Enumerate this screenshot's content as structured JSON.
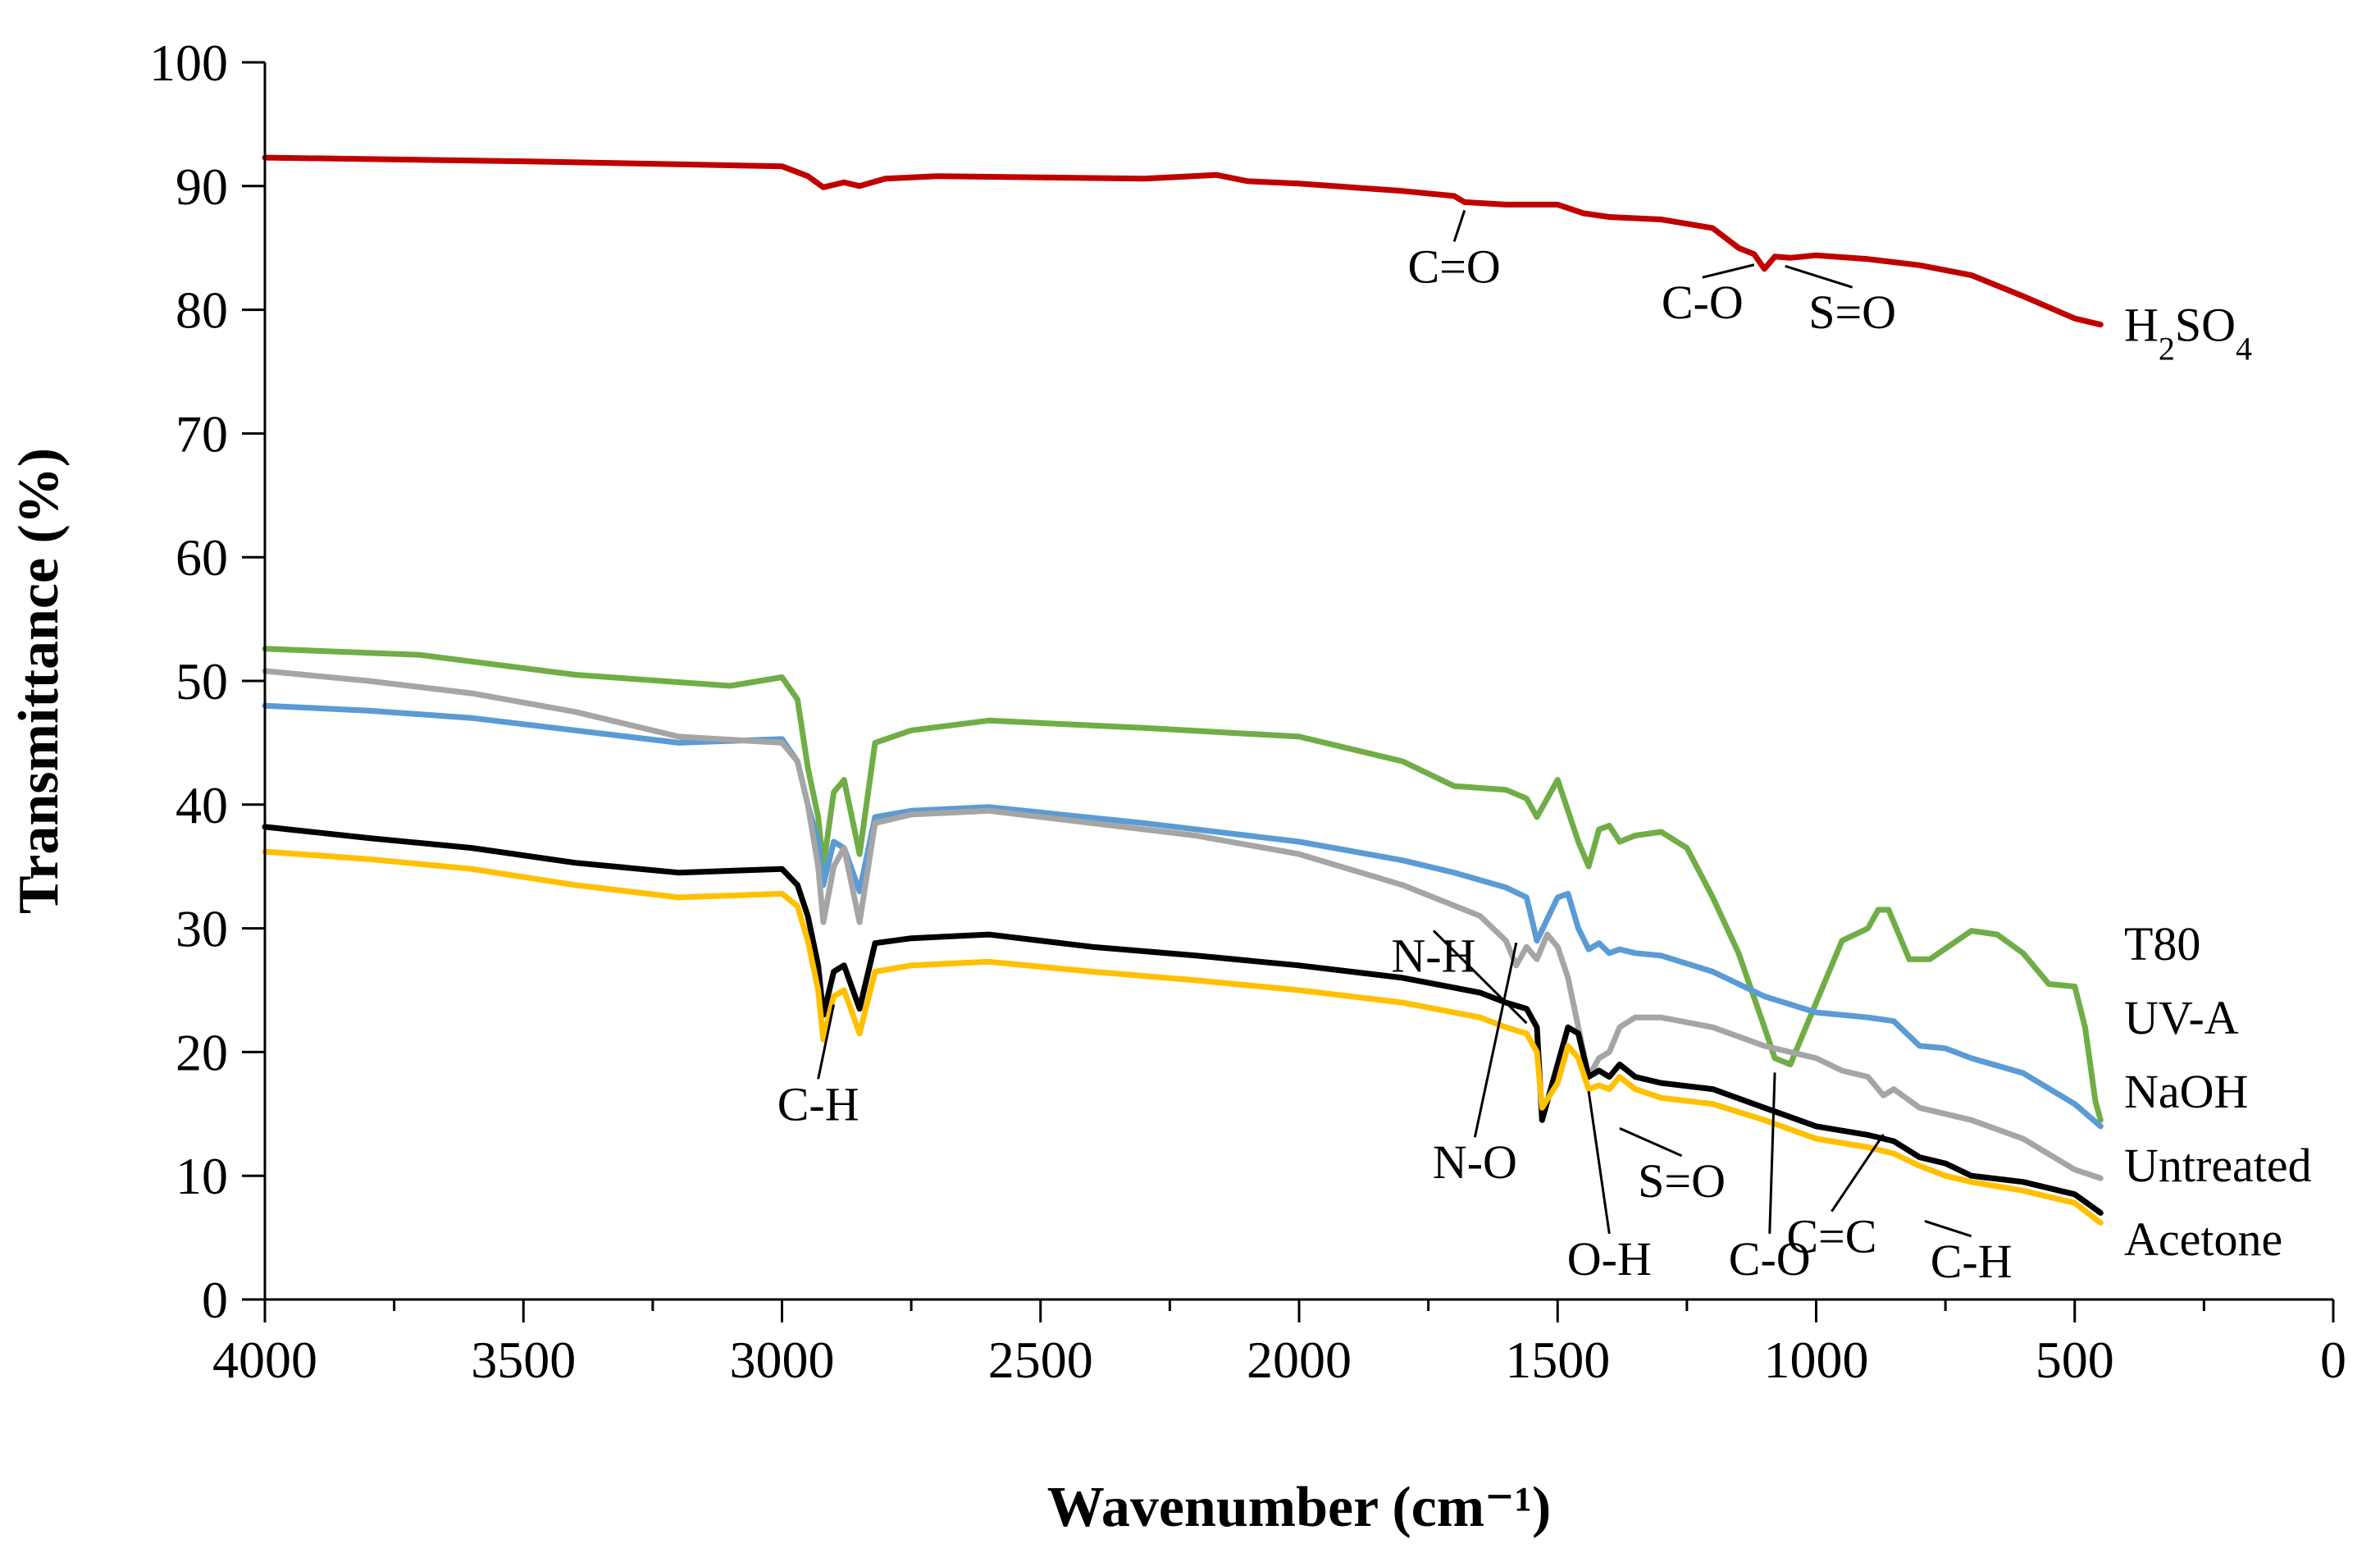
{
  "chart_data": {
    "type": "line",
    "title": "",
    "xlabel": "Wavenumber (cm⁻¹)",
    "ylabel": "Transmittance (%)",
    "xlim": [
      4000,
      0
    ],
    "ylim": [
      0,
      100
    ],
    "xticks": [
      4000,
      3500,
      3000,
      2500,
      2000,
      1500,
      1000,
      500,
      0
    ],
    "yticks": [
      0,
      10,
      20,
      30,
      40,
      50,
      60,
      70,
      80,
      90,
      100
    ],
    "grid": false,
    "legend_position": "right, beside line ends",
    "series": [
      {
        "name": "H2SO4",
        "label_main": "H",
        "label_sub1": "2",
        "label_mid": "SO",
        "label_sub2": "4",
        "color": "#C00000",
        "x": [
          4000,
          3500,
          3000,
          2950,
          2920,
          2880,
          2850,
          2800,
          2700,
          2500,
          2300,
          2160,
          2100,
          2000,
          1900,
          1800,
          1700,
          1680,
          1600,
          1500,
          1450,
          1400,
          1300,
          1200,
          1150,
          1120,
          1100,
          1080,
          1050,
          1000,
          900,
          800,
          700,
          600,
          500,
          450
        ],
        "y": [
          92.3,
          92.0,
          91.6,
          90.8,
          89.9,
          90.3,
          90.0,
          90.6,
          90.8,
          90.7,
          90.6,
          90.9,
          90.4,
          90.2,
          89.9,
          89.6,
          89.2,
          88.7,
          88.5,
          88.5,
          87.8,
          87.5,
          87.3,
          86.6,
          85.0,
          84.5,
          83.3,
          84.3,
          84.2,
          84.4,
          84.1,
          83.6,
          82.8,
          81.1,
          79.3,
          78.8
        ]
      },
      {
        "name": "T80",
        "color": "#70AD47",
        "x": [
          4000,
          3700,
          3400,
          3100,
          3000,
          2970,
          2950,
          2930,
          2920,
          2900,
          2880,
          2850,
          2820,
          2750,
          2600,
          2300,
          2000,
          1800,
          1700,
          1600,
          1560,
          1540,
          1500,
          1460,
          1440,
          1420,
          1400,
          1380,
          1350,
          1300,
          1250,
          1200,
          1150,
          1100,
          1080,
          1050,
          1000,
          950,
          900,
          880,
          860,
          820,
          780,
          700,
          650,
          600,
          550,
          500,
          480,
          460,
          450
        ],
        "y": [
          52.6,
          52.1,
          50.5,
          49.6,
          50.3,
          48.5,
          43.0,
          39.0,
          35.0,
          41.0,
          42.0,
          36.0,
          45.0,
          46.0,
          46.8,
          46.2,
          45.5,
          43.5,
          41.5,
          41.2,
          40.5,
          39.0,
          42.0,
          37.0,
          35.0,
          38.0,
          38.3,
          37.0,
          37.5,
          37.8,
          36.5,
          32.5,
          28.0,
          22.0,
          19.5,
          19.0,
          24.0,
          29.0,
          30.0,
          31.5,
          31.5,
          27.5,
          27.5,
          29.8,
          29.5,
          28.0,
          25.5,
          25.3,
          22.0,
          16.0,
          14.5
        ]
      },
      {
        "name": "UV-A",
        "color": "#5B9BD5",
        "x": [
          4000,
          3800,
          3600,
          3400,
          3200,
          3000,
          2970,
          2950,
          2930,
          2920,
          2900,
          2880,
          2850,
          2820,
          2750,
          2600,
          2300,
          2000,
          1800,
          1700,
          1600,
          1560,
          1540,
          1500,
          1480,
          1460,
          1440,
          1420,
          1400,
          1380,
          1350,
          1300,
          1200,
          1100,
          1000,
          900,
          850,
          800,
          750,
          700,
          600,
          500,
          450
        ],
        "y": [
          48.0,
          47.6,
          47.0,
          46.0,
          45.0,
          45.3,
          43.5,
          40.0,
          37.0,
          33.5,
          37.0,
          36.5,
          33.0,
          39.0,
          39.5,
          39.8,
          38.5,
          37.0,
          35.5,
          34.5,
          33.3,
          32.5,
          29.0,
          32.5,
          32.8,
          30.0,
          28.3,
          28.8,
          28.0,
          28.3,
          28.0,
          27.8,
          26.5,
          24.5,
          23.2,
          22.8,
          22.5,
          20.5,
          20.3,
          19.5,
          18.3,
          15.8,
          14.0
        ]
      },
      {
        "name": "NaOH",
        "color": "#A5A5A5",
        "x": [
          4000,
          3800,
          3600,
          3400,
          3200,
          3000,
          2970,
          2950,
          2930,
          2920,
          2900,
          2880,
          2850,
          2820,
          2750,
          2600,
          2400,
          2200,
          2000,
          1800,
          1650,
          1600,
          1580,
          1560,
          1540,
          1520,
          1500,
          1480,
          1460,
          1440,
          1420,
          1400,
          1380,
          1350,
          1300,
          1200,
          1100,
          1000,
          950,
          900,
          870,
          850,
          800,
          750,
          700,
          600,
          500,
          450
        ],
        "y": [
          50.8,
          50.0,
          49.0,
          47.5,
          45.5,
          45.0,
          43.5,
          40.0,
          35.0,
          30.5,
          35.0,
          36.5,
          30.5,
          38.5,
          39.2,
          39.5,
          38.5,
          37.5,
          36.0,
          33.5,
          31.0,
          29.0,
          27.0,
          28.5,
          27.5,
          29.5,
          28.5,
          26.0,
          22.0,
          18.0,
          19.5,
          20.0,
          22.0,
          22.8,
          22.8,
          22.0,
          20.5,
          19.5,
          18.5,
          18.0,
          16.5,
          17.0,
          15.5,
          15.0,
          14.5,
          13.0,
          10.5,
          9.8
        ]
      },
      {
        "name": "Untreated",
        "color": "#000000",
        "x": [
          4000,
          3800,
          3600,
          3400,
          3200,
          3000,
          2970,
          2950,
          2930,
          2920,
          2900,
          2880,
          2850,
          2820,
          2750,
          2600,
          2400,
          2200,
          2000,
          1800,
          1650,
          1600,
          1560,
          1540,
          1530,
          1500,
          1480,
          1460,
          1440,
          1420,
          1400,
          1380,
          1350,
          1300,
          1200,
          1100,
          1000,
          900,
          850,
          800,
          750,
          700,
          600,
          500,
          450
        ],
        "y": [
          38.2,
          37.3,
          36.5,
          35.3,
          34.5,
          34.8,
          33.5,
          31.0,
          27.0,
          23.0,
          26.5,
          27.0,
          23.5,
          28.8,
          29.2,
          29.5,
          28.5,
          27.8,
          27.0,
          26.0,
          24.8,
          24.0,
          23.5,
          22.0,
          14.5,
          19.0,
          22.0,
          21.5,
          18.0,
          18.5,
          18.0,
          19.0,
          18.0,
          17.5,
          17.0,
          15.5,
          14.0,
          13.3,
          12.8,
          11.5,
          11.0,
          10.0,
          9.5,
          8.5,
          7.0
        ]
      },
      {
        "name": "Acetone",
        "color": "#FFC000",
        "x": [
          4000,
          3800,
          3600,
          3400,
          3200,
          3000,
          2970,
          2950,
          2930,
          2920,
          2900,
          2880,
          2850,
          2820,
          2750,
          2600,
          2400,
          2200,
          2000,
          1800,
          1650,
          1600,
          1560,
          1540,
          1530,
          1500,
          1480,
          1460,
          1440,
          1420,
          1400,
          1380,
          1350,
          1300,
          1200,
          1100,
          1000,
          900,
          850,
          800,
          750,
          700,
          600,
          500,
          450
        ],
        "y": [
          36.2,
          35.6,
          34.8,
          33.5,
          32.5,
          32.8,
          31.8,
          29.0,
          25.0,
          21.0,
          24.5,
          25.0,
          21.5,
          26.5,
          27.0,
          27.3,
          26.5,
          25.8,
          25.0,
          24.0,
          22.8,
          22.0,
          21.5,
          20.0,
          15.5,
          17.5,
          20.5,
          19.5,
          17.0,
          17.3,
          17.0,
          18.0,
          17.0,
          16.3,
          15.8,
          14.5,
          13.0,
          12.3,
          11.8,
          10.8,
          10.0,
          9.5,
          8.8,
          7.8,
          6.2
        ]
      }
    ],
    "annotations": [
      {
        "text": "C=O",
        "point": [
          1680,
          88.7
        ],
        "label_at": [
          1700,
          82.2
        ]
      },
      {
        "text": "C-O",
        "point": [
          1120,
          84.3
        ],
        "label_at": [
          1220,
          79.3
        ]
      },
      {
        "text": "S=O",
        "point": [
          1060,
          84.2
        ],
        "label_at": [
          930,
          78.5
        ]
      },
      {
        "text": "C-H",
        "point": [
          2900,
          24.5
        ],
        "label_at": [
          2930,
          14.5
        ]
      },
      {
        "text": "N-H",
        "point": [
          1560,
          23.0
        ],
        "label_at": [
          1740,
          26.5
        ]
      },
      {
        "text": "N-O",
        "point": [
          1580,
          29.5
        ],
        "label_at": [
          1660,
          9.8
        ]
      },
      {
        "text": "O-H",
        "point": [
          1440,
          17.5
        ],
        "label_at": [
          1400,
          2.0
        ]
      },
      {
        "text": "S=O",
        "point": [
          1380,
          14.5
        ],
        "label_at": [
          1260,
          8.3
        ]
      },
      {
        "text": "C-O",
        "point": [
          1080,
          19.0
        ],
        "label_at": [
          1090,
          2.0
        ]
      },
      {
        "text": "C=C",
        "point": [
          870,
          14.0
        ],
        "label_at": [
          970,
          3.8
        ]
      },
      {
        "text": "C-H",
        "point": [
          790,
          7.0
        ],
        "label_at": [
          700,
          1.8
        ]
      }
    ],
    "legend_order": [
      "T80",
      "UV-A",
      "NaOH",
      "Untreated",
      "Acetone"
    ]
  }
}
